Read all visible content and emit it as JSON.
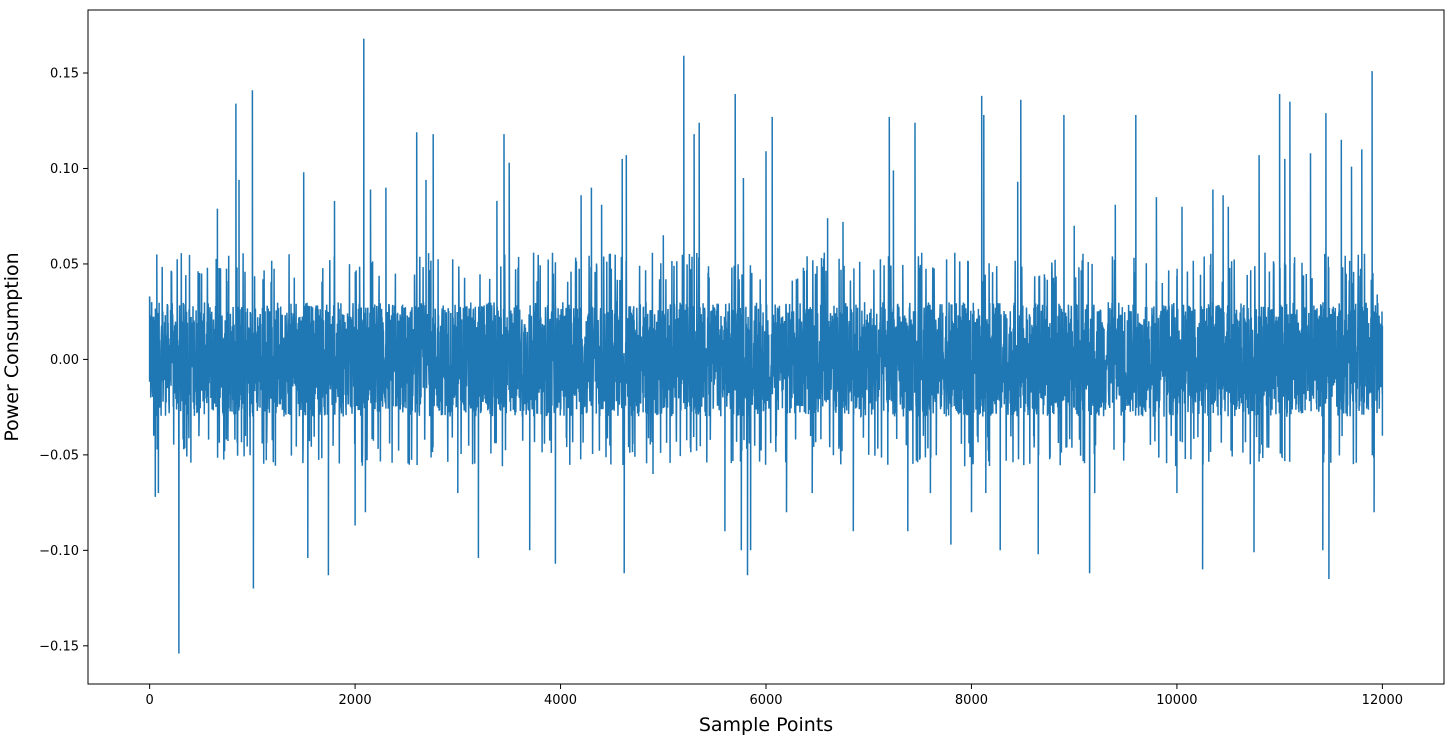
{
  "chart_data": {
    "type": "line",
    "title": "",
    "xlabel": "Sample Points",
    "ylabel": "Power Consumption",
    "xlim": [
      -600,
      12600
    ],
    "ylim": [
      -0.17,
      0.183
    ],
    "x_ticks": [
      0,
      2000,
      4000,
      6000,
      8000,
      10000,
      12000
    ],
    "x_tick_labels": [
      "0",
      "2000",
      "4000",
      "6000",
      "8000",
      "10000",
      "12000"
    ],
    "y_ticks": [
      -0.15,
      -0.1,
      -0.05,
      0.0,
      0.05,
      0.1,
      0.15
    ],
    "y_tick_labels": [
      "−0.15",
      "−0.10",
      "−0.05",
      "0.00",
      "0.05",
      "0.10",
      "0.15"
    ],
    "grid": false,
    "legend": "none",
    "line_color": "#1f77b4",
    "n_points": 12000,
    "noise_amplitude": 0.03,
    "series": [
      {
        "x": [
          0,
          10,
          20,
          40,
          55,
          70,
          85,
          285,
          660,
          840,
          870,
          1000,
          1010,
          1500,
          1540,
          1740,
          1800,
          2000,
          2085,
          2100,
          2150,
          2300,
          2600,
          2690,
          2760,
          3000,
          3200,
          3380,
          3450,
          3500,
          3700,
          3950,
          4200,
          4300,
          4400,
          4600,
          4620,
          4640,
          4900,
          5000,
          5200,
          5300,
          5350,
          5600,
          5700,
          5760,
          5780,
          5820,
          5850,
          6000,
          6060,
          6200,
          6450,
          6600,
          6750,
          6850,
          7000,
          7200,
          7240,
          7380,
          7450,
          7600,
          7800,
          8000,
          8100,
          8120,
          8140,
          8280,
          8450,
          8480,
          8650,
          8900,
          9000,
          9150,
          9200,
          9400,
          9600,
          9800,
          10000,
          10050,
          10250,
          10350,
          10450,
          10500,
          10750,
          10800,
          11000,
          11050,
          11100,
          11300,
          11420,
          11450,
          11480,
          11600,
          11700,
          11800,
          11900,
          11920,
          11950,
          12000
        ],
        "y": [
          0.033,
          -0.02,
          0.03,
          -0.04,
          -0.072,
          0.055,
          -0.07,
          -0.154,
          0.079,
          0.134,
          0.094,
          0.141,
          -0.12,
          0.098,
          -0.104,
          -0.113,
          0.083,
          -0.087,
          0.168,
          -0.08,
          0.089,
          0.09,
          0.119,
          0.094,
          0.118,
          -0.07,
          -0.104,
          0.083,
          0.118,
          0.103,
          -0.1,
          -0.107,
          0.086,
          0.09,
          0.081,
          0.105,
          -0.112,
          0.107,
          -0.06,
          0.065,
          0.159,
          0.118,
          0.124,
          -0.09,
          0.139,
          -0.1,
          0.095,
          -0.113,
          -0.1,
          0.109,
          0.127,
          -0.08,
          -0.07,
          0.074,
          0.072,
          -0.09,
          -0.05,
          0.127,
          0.099,
          -0.09,
          0.124,
          -0.07,
          -0.097,
          -0.08,
          0.138,
          0.128,
          -0.07,
          -0.1,
          0.093,
          0.136,
          -0.102,
          0.128,
          0.07,
          -0.112,
          -0.07,
          0.081,
          0.128,
          0.085,
          -0.07,
          0.08,
          -0.11,
          0.089,
          0.086,
          0.08,
          -0.101,
          0.107,
          0.139,
          0.105,
          0.135,
          0.108,
          -0.1,
          0.129,
          -0.115,
          0.115,
          0.101,
          0.11,
          0.151,
          -0.08,
          0.034,
          -0.04
        ]
      }
    ]
  }
}
